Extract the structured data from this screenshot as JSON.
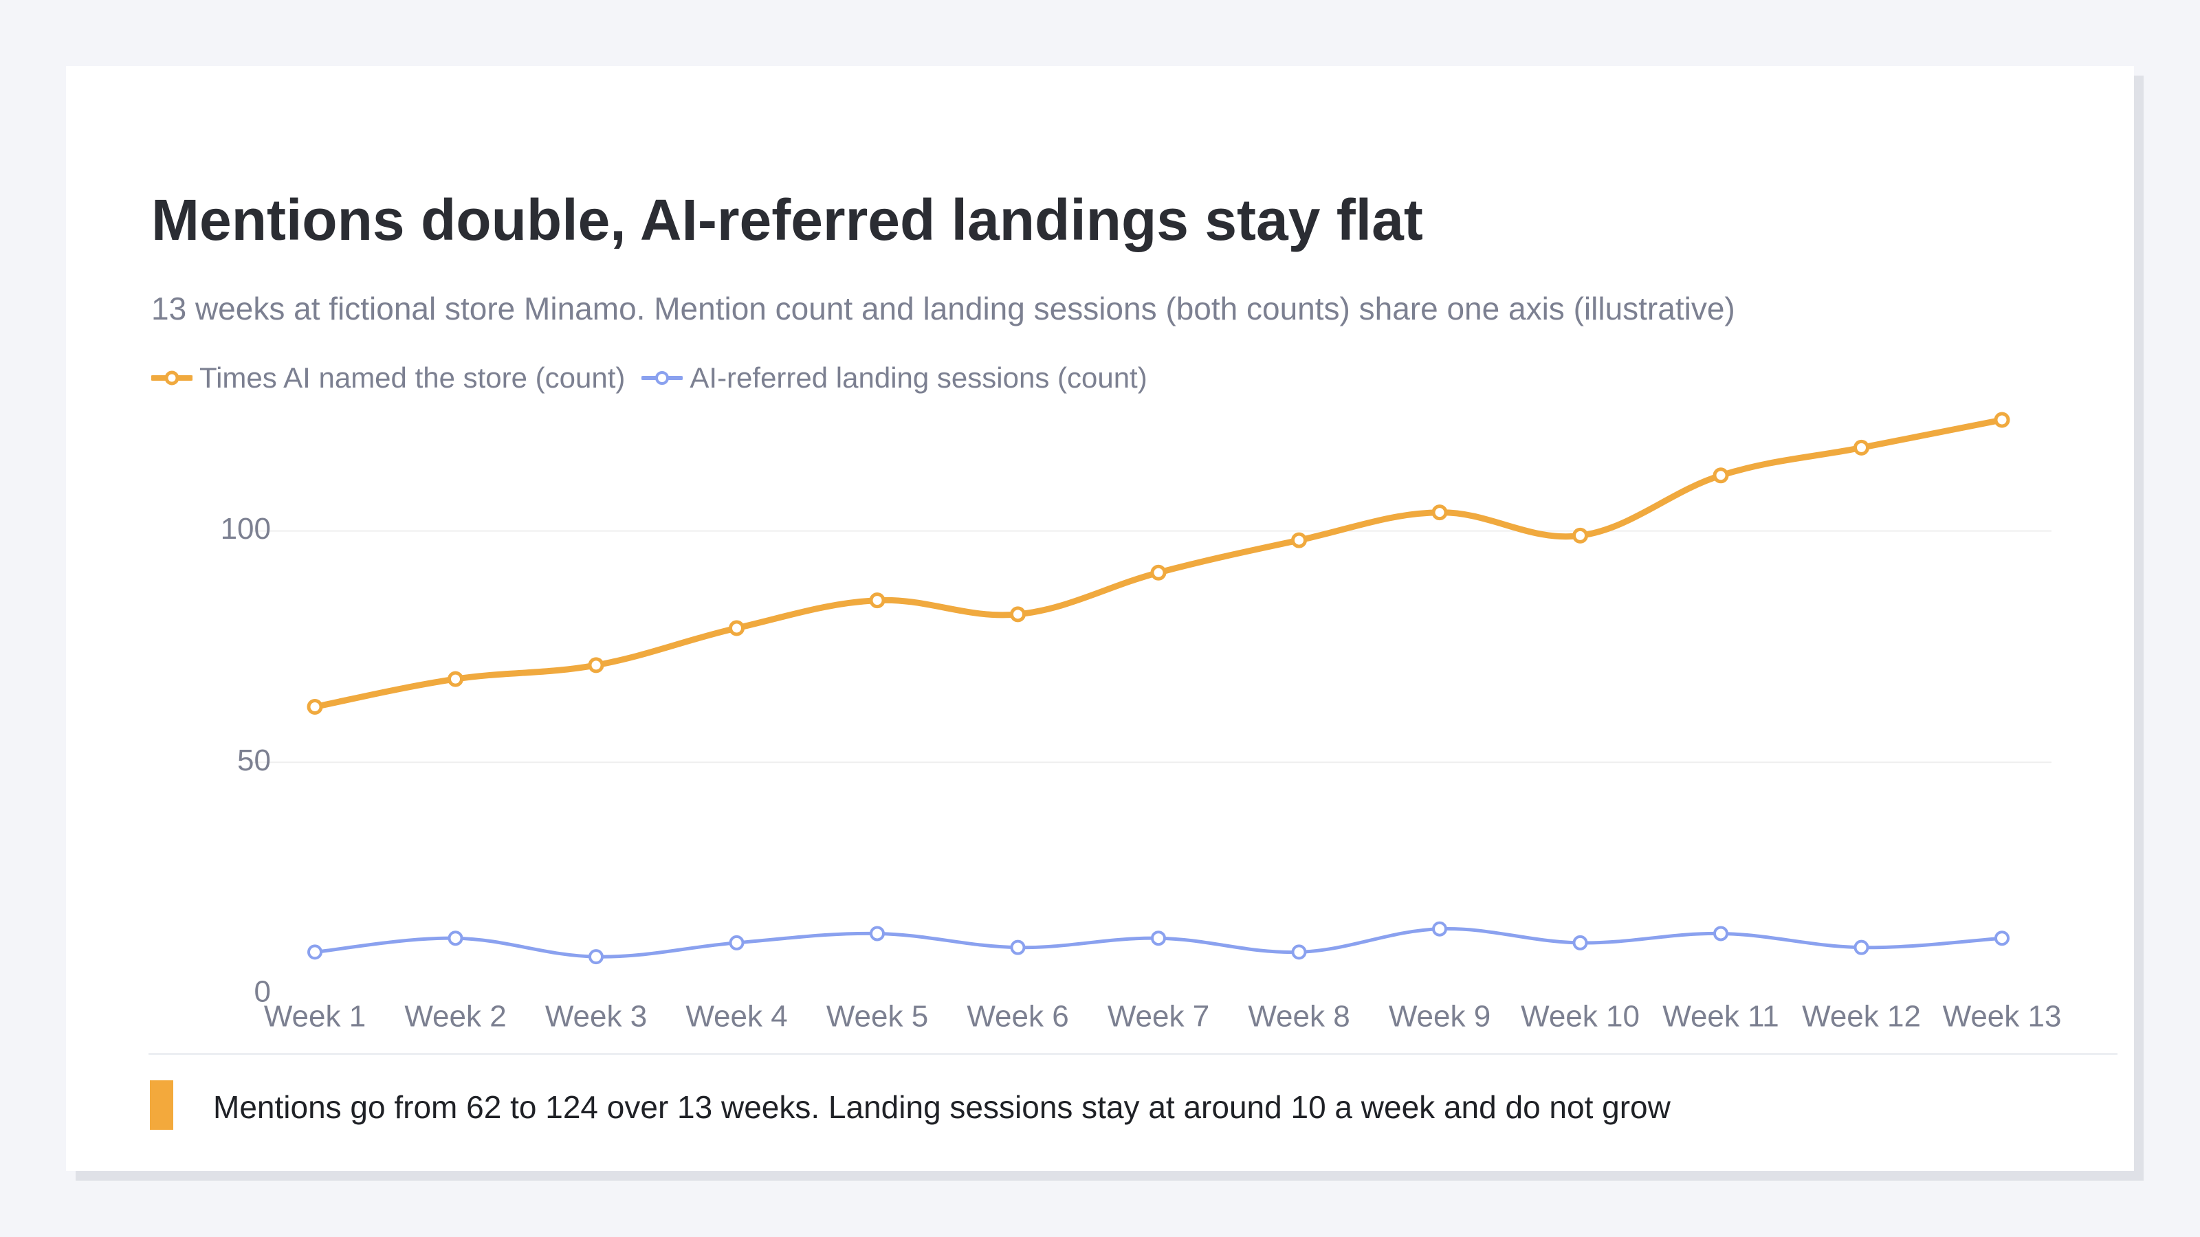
{
  "header": {
    "title": "Mentions double, AI-referred landings stay flat",
    "subtitle": "13 weeks at fictional store Minamo. Mention count and landing sessions (both counts) share one axis (illustrative)"
  },
  "footer": {
    "note": "Mentions go from 62 to 124 over 13 weeks. Landing sessions stay at around 10 a week and do not grow"
  },
  "chart_data": {
    "type": "line",
    "title": "Mentions double, AI-referred landings stay flat",
    "subtitle": "13 weeks at fictional store Minamo. Mention count and landing sessions (both counts) share one axis (illustrative)",
    "xlabel": "",
    "ylabel": "",
    "categories": [
      "Week 1",
      "Week 2",
      "Week 3",
      "Week 4",
      "Week 5",
      "Week 6",
      "Week 7",
      "Week 8",
      "Week 9",
      "Week 10",
      "Week 11",
      "Week 12",
      "Week 13"
    ],
    "ylim": [
      0,
      124
    ],
    "yticks": [
      0,
      50,
      100
    ],
    "grid": true,
    "legend_position": "top-left",
    "series": [
      {
        "name": "Times AI named the store (count)",
        "color": "#f0a93e",
        "values": [
          62,
          68,
          71,
          79,
          85,
          82,
          91,
          98,
          104,
          99,
          112,
          118,
          124
        ]
      },
      {
        "name": "AI-referred landing sessions (count)",
        "color": "#8aa1ef",
        "values": [
          9,
          12,
          8,
          11,
          13,
          10,
          12,
          9,
          14,
          11,
          13,
          10,
          12
        ]
      }
    ]
  }
}
